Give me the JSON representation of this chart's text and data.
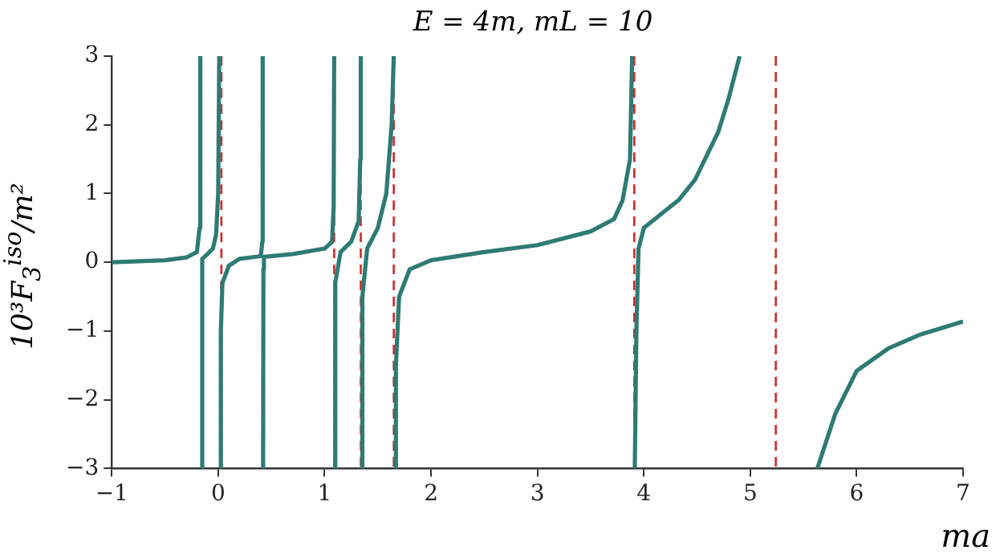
{
  "chart_data": {
    "type": "line",
    "title": "E = 4m,  mL = 10",
    "xlabel": "ma",
    "ylabel": "10³F$_{3}$$^{iso}$/m²",
    "x": [
      -1,
      -0.5,
      -0.3,
      -0.2,
      -0.175,
      -0.168,
      -0.165,
      -0.16,
      -0.15,
      -0.1,
      -0.05,
      -0.02,
      0,
      0.01,
      0.015,
      0.02,
      0.025,
      0.04,
      0.1,
      0.2,
      0.4,
      0.415,
      0.418,
      0.42,
      0.422,
      0.425,
      0.43,
      0.7,
      1,
      1.07,
      1.085,
      1.09,
      1.092,
      1.095,
      1.1,
      1.15,
      1.25,
      1.32,
      1.335,
      1.34,
      1.342,
      1.345,
      1.355,
      1.4,
      1.5,
      1.58,
      1.63,
      1.65,
      1.657,
      1.665,
      1.67,
      1.7,
      1.8,
      2,
      2.5,
      3,
      3.5,
      3.72,
      3.8,
      3.87,
      3.89,
      3.9,
      3.915,
      3.93,
      3.95,
      4,
      4.2,
      4.33,
      4.48,
      4.7,
      4.8,
      4.9,
      5.3,
      5.63,
      5.8,
      6,
      6.3,
      6.6,
      7
    ],
    "series": [
      {
        "color": "#2e7b74",
        "values": [
          0,
          0.03,
          0.07,
          0.15,
          0.5,
          3,
          null,
          -3,
          0.05,
          0.12,
          0.2,
          0.4,
          1,
          3,
          null,
          -3,
          -1,
          -0.3,
          -0.05,
          0.05,
          0.09,
          0.3,
          3,
          null,
          -3,
          -0.1,
          0.08,
          0.12,
          0.2,
          0.3,
          0.8,
          3,
          null,
          -3,
          -0.3,
          0.15,
          0.3,
          0.6,
          1.5,
          3,
          null,
          -3,
          -0.5,
          0.2,
          0.5,
          1,
          2,
          3,
          null,
          -3,
          -1.5,
          -0.5,
          -0.1,
          0.03,
          0.15,
          0.25,
          0.45,
          0.63,
          0.9,
          1.5,
          3,
          null,
          -3,
          -1,
          0.2,
          0.5,
          0.75,
          0.91,
          1.2,
          1.9,
          2.4,
          3,
          null,
          -3,
          -2.2,
          -1.58,
          -1.25,
          -1.05,
          -0.86
        ]
      }
    ],
    "xlim": [
      -1,
      7
    ],
    "xticks": [
      -1,
      0,
      1,
      2,
      3,
      4,
      5,
      6,
      7
    ],
    "ylim": [
      -3,
      3
    ],
    "yticks": [
      -3,
      -2,
      -1,
      0,
      1,
      2,
      3
    ],
    "grid": false,
    "legend": false,
    "marker": "none",
    "line_style": "solid",
    "ref_lines": [
      {
        "axis": "x",
        "value": 0.03,
        "color": "#d62728",
        "line_style": "dashed"
      },
      {
        "axis": "x",
        "value": 1.09,
        "color": "#d62728",
        "line_style": "dashed"
      },
      {
        "axis": "x",
        "value": 1.34,
        "color": "#d62728",
        "line_style": "dashed"
      },
      {
        "axis": "x",
        "value": 1.65,
        "color": "#d62728",
        "line_style": "dashed"
      },
      {
        "axis": "x",
        "value": 3.91,
        "color": "#d62728",
        "line_style": "dashed"
      },
      {
        "axis": "x",
        "value": 5.24,
        "color": "#d62728",
        "line_style": "dashed"
      }
    ]
  }
}
